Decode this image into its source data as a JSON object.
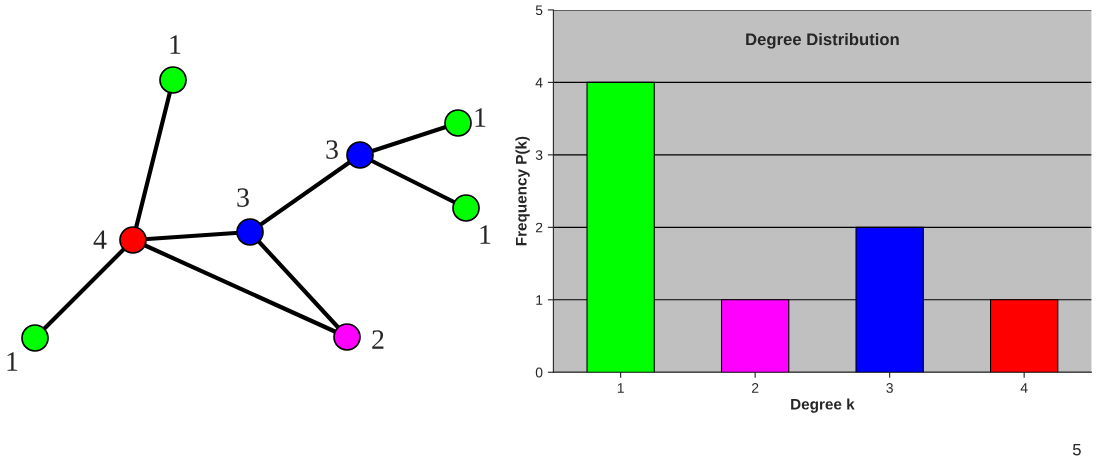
{
  "chart_data": [
    {
      "type": "other",
      "annotations": [
        "1",
        "4",
        "3",
        "3",
        "1",
        "1",
        "2",
        "1"
      ]
    },
    {
      "type": "bar",
      "title": "Degree Distribution",
      "xlabel": "Degree k",
      "ylabel": "Frequency P(k)",
      "categories": [
        "1",
        "2",
        "3",
        "4"
      ],
      "values": [
        4,
        1,
        2,
        1
      ],
      "colors": [
        "#00ff00",
        "#ff00ff",
        "#0000ff",
        "#ff0000"
      ],
      "ylim": [
        0,
        5
      ],
      "yticks": [
        0,
        1,
        2,
        3,
        4,
        5
      ],
      "grid": "y",
      "annotations": [
        "5"
      ]
    }
  ]
}
